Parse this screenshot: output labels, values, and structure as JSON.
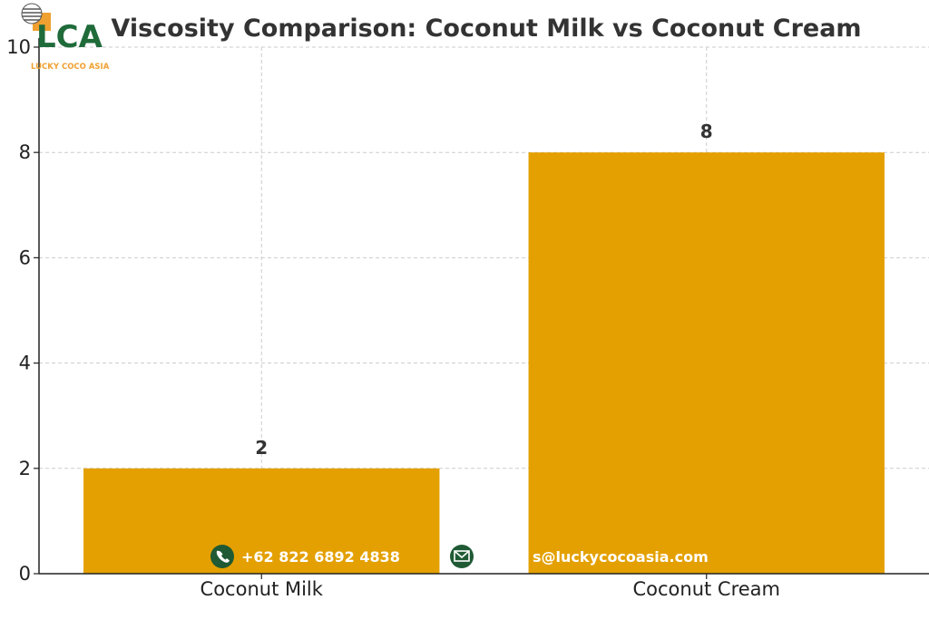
{
  "chart_data": {
    "type": "bar",
    "title": "Viscosity Comparison: Coconut Milk vs Coconut Cream",
    "categories": [
      "Coconut Milk",
      "Coconut Cream"
    ],
    "values": [
      2,
      8
    ],
    "data_labels": [
      "2",
      "8"
    ],
    "xlabel": "",
    "ylabel": "",
    "ylim": [
      0,
      10
    ],
    "yticks": [
      0,
      2,
      4,
      6,
      8,
      10
    ],
    "ytick_labels": [
      "0",
      "2",
      "4",
      "6",
      "8",
      "10"
    ],
    "grid": true,
    "bar_color": "#e4a000"
  },
  "watermark": {
    "logo_text": "LCA",
    "logo_subtitle": "LUCKY COCO ASIA",
    "logo_colors": {
      "green": "#1f6b3a",
      "orange": "#f0a030"
    },
    "phone_icon": "phone-icon",
    "phone": "+62 822 6892 4838",
    "email_icon": "mail-icon",
    "email": "s@luckycocoasia.com"
  }
}
